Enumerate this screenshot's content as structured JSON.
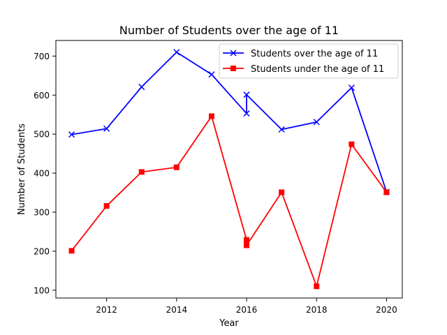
{
  "chart_data": {
    "type": "line",
    "title": "Number of Students over the age of 11",
    "xlabel": "Year",
    "ylabel": "Number of Students",
    "xlim": [
      2010.55,
      2020.45
    ],
    "ylim": [
      80,
      740
    ],
    "x_ticks": [
      2012,
      2014,
      2016,
      2018,
      2020
    ],
    "y_ticks": [
      100,
      200,
      300,
      400,
      500,
      600,
      700
    ],
    "grid": false,
    "legend_position": "top-right",
    "series": [
      {
        "name": "Students over the age of 11",
        "color": "#0000ff",
        "marker": "x",
        "points": [
          [
            2011,
            499
          ],
          [
            2012,
            514
          ],
          [
            2013,
            621
          ],
          [
            2014,
            710
          ],
          [
            2015,
            653
          ],
          [
            2016,
            553
          ],
          [
            2016,
            601
          ],
          [
            2017,
            512
          ],
          [
            2018,
            531
          ],
          [
            2019,
            619
          ],
          [
            2020,
            352
          ]
        ]
      },
      {
        "name": "Students under the age of 11",
        "color": "#ff0000",
        "marker": "square",
        "points": [
          [
            2011,
            201
          ],
          [
            2012,
            316
          ],
          [
            2013,
            403
          ],
          [
            2014,
            415
          ],
          [
            2015,
            546
          ],
          [
            2016,
            229
          ],
          [
            2016,
            215
          ],
          [
            2017,
            351
          ],
          [
            2018,
            110
          ],
          [
            2019,
            474
          ],
          [
            2020,
            351
          ]
        ]
      }
    ]
  }
}
